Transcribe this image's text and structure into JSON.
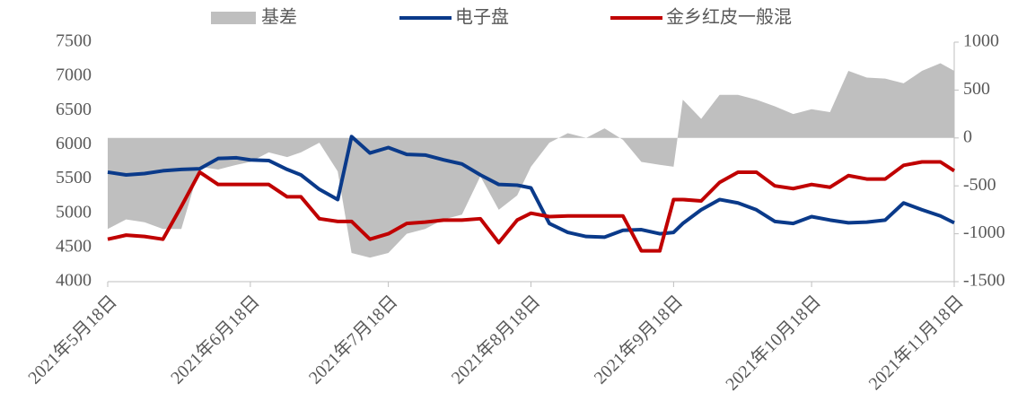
{
  "chart_data": {
    "type": "line",
    "x": [
      "2021-05-18",
      "2021-05-22",
      "2021-05-26",
      "2021-05-30",
      "2021-06-03",
      "2021-06-07",
      "2021-06-11",
      "2021-06-15",
      "2021-06-18",
      "2021-06-22",
      "2021-06-26",
      "2021-06-29",
      "2021-07-03",
      "2021-07-07",
      "2021-07-10",
      "2021-07-14",
      "2021-07-18",
      "2021-07-22",
      "2021-07-26",
      "2021-07-30",
      "2021-08-03",
      "2021-08-07",
      "2021-08-11",
      "2021-08-15",
      "2021-08-18",
      "2021-08-22",
      "2021-08-26",
      "2021-08-30",
      "2021-09-03",
      "2021-09-07",
      "2021-09-11",
      "2021-09-15",
      "2021-09-18",
      "2021-09-20",
      "2021-09-24",
      "2021-09-28",
      "2021-10-02",
      "2021-10-06",
      "2021-10-10",
      "2021-10-14",
      "2021-10-18",
      "2021-10-22",
      "2021-10-26",
      "2021-10-30",
      "2021-11-03",
      "2021-11-07",
      "2021-11-11",
      "2021-11-15",
      "2021-11-18"
    ],
    "series": [
      {
        "name": "基差",
        "type": "area",
        "axis": "y2",
        "color": "#bfbfbf",
        "values": [
          -950,
          -850,
          -880,
          -950,
          -950,
          -300,
          -330,
          -280,
          -250,
          -150,
          -200,
          -150,
          -50,
          -350,
          -1200,
          -1250,
          -1200,
          -1000,
          -950,
          -850,
          -800,
          -400,
          -750,
          -600,
          -300,
          -50,
          50,
          0,
          100,
          -20,
          -250,
          -280,
          -300,
          400,
          200,
          450,
          450,
          400,
          330,
          250,
          300,
          270,
          700,
          630,
          620,
          570,
          700,
          780,
          700
        ]
      },
      {
        "name": "电子盘",
        "color": "#0a3a8a",
        "values": [
          5600,
          5560,
          5580,
          5620,
          5640,
          5650,
          5800,
          5810,
          5780,
          5770,
          5640,
          5560,
          5350,
          5200,
          6120,
          5880,
          5960,
          5860,
          5850,
          5780,
          5720,
          5560,
          5420,
          5410,
          5370,
          4850,
          4720,
          4660,
          4650,
          4750,
          4760,
          4700,
          4720,
          4850,
          5050,
          5200,
          5150,
          5050,
          4880,
          4850,
          4950,
          4900,
          4860,
          4870,
          4900,
          5150,
          5050,
          4960,
          4860
        ]
      },
      {
        "name": "金乡红皮一般混",
        "color": "#c00000",
        "values": [
          4620,
          4680,
          4660,
          4620,
          5100,
          5600,
          5420,
          5420,
          5420,
          5420,
          5240,
          5240,
          4920,
          4880,
          4880,
          4620,
          4700,
          4850,
          4870,
          4900,
          4900,
          4920,
          4570,
          4900,
          5000,
          4950,
          4960,
          4960,
          4960,
          4960,
          4450,
          4450,
          5200,
          5200,
          5180,
          5450,
          5600,
          5600,
          5400,
          5360,
          5420,
          5380,
          5550,
          5500,
          5500,
          5700,
          5750,
          5750,
          5620
        ]
      }
    ],
    "xlim": [
      "2021-05-18",
      "2021-11-18"
    ],
    "xticks": [
      {
        "value": "2021-05-18",
        "label": "2021年5月18日"
      },
      {
        "value": "2021-06-18",
        "label": "2021年6月18日"
      },
      {
        "value": "2021-07-18",
        "label": "2021年7月18日"
      },
      {
        "value": "2021-08-18",
        "label": "2021年8月18日"
      },
      {
        "value": "2021-09-18",
        "label": "2021年9月18日"
      },
      {
        "value": "2021-10-18",
        "label": "2021年10月18日"
      },
      {
        "value": "2021-11-18",
        "label": "2021年11月18日"
      }
    ],
    "ylim": [
      4000,
      7500
    ],
    "yticks": [
      4000,
      4500,
      5000,
      5500,
      6000,
      6500,
      7000,
      7500
    ],
    "y2lim": [
      -1500,
      1000
    ],
    "y2ticks": [
      -1500,
      -1000,
      -500,
      0,
      500,
      1000
    ]
  }
}
